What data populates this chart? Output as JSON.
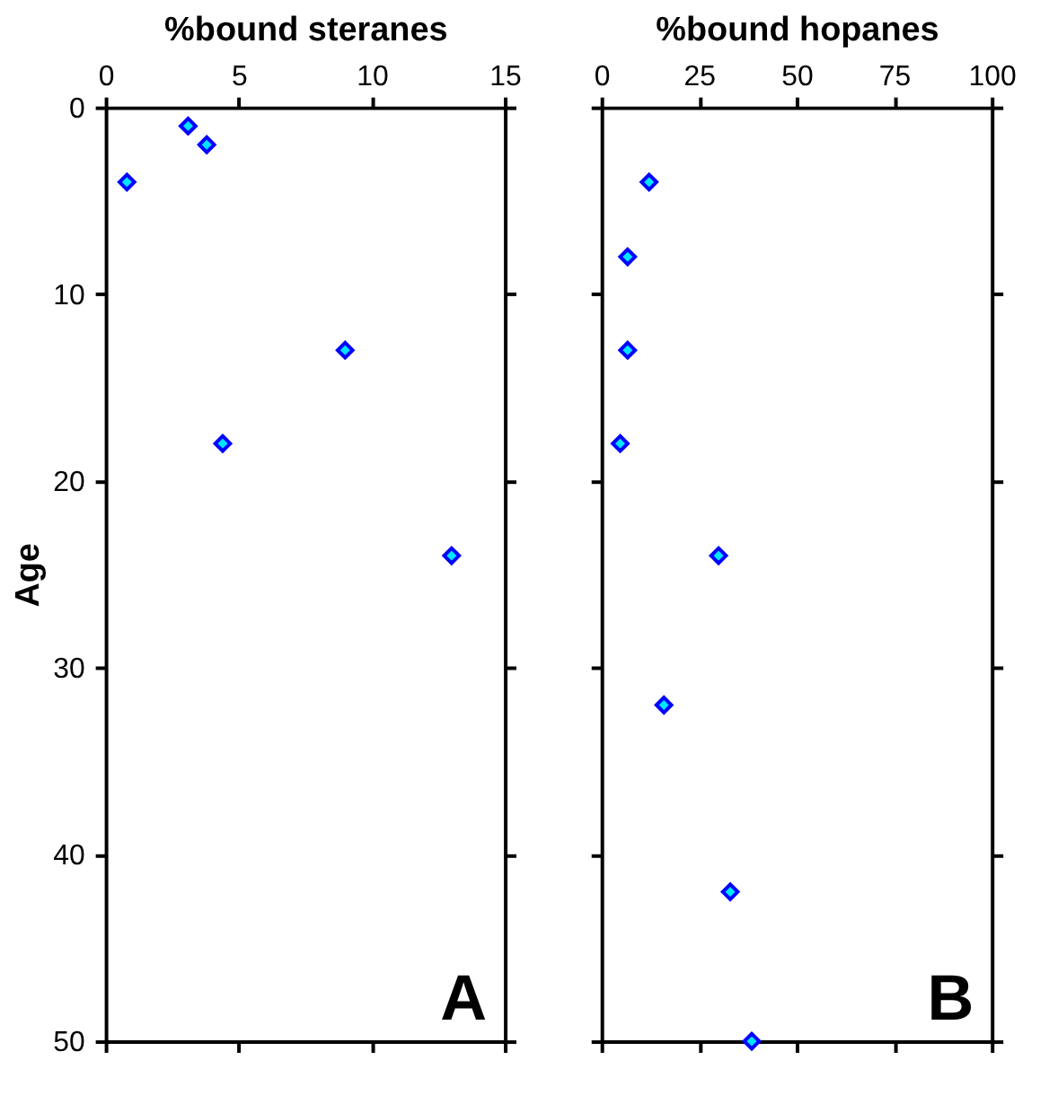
{
  "chart_data": [
    {
      "type": "scatter",
      "title": "%bound steranes",
      "ylabel": "Age",
      "marker": "diamond",
      "grid": false,
      "xlim": [
        0,
        15
      ],
      "xticks": [
        0,
        5,
        10,
        15
      ],
      "ylim": [
        50,
        0
      ],
      "yticks": [
        0,
        10,
        20,
        30,
        40,
        50
      ],
      "annotations": [
        "A"
      ],
      "series": [
        {
          "color": "#00e5ff",
          "x": [
            3.1,
            3.8,
            0.8,
            9.0,
            4.4,
            13.0
          ],
          "values": [
            1,
            2,
            4,
            13,
            18,
            24
          ]
        }
      ]
    },
    {
      "type": "scatter",
      "title": "%bound hopanes",
      "marker": "diamond",
      "grid": false,
      "tick_labels": "x",
      "xlim": [
        0,
        100
      ],
      "xticks": [
        0,
        25,
        50,
        75,
        100
      ],
      "ylim": [
        50,
        0
      ],
      "yticks": [
        0,
        10,
        20,
        30,
        40,
        50
      ],
      "annotations": [
        "B"
      ],
      "series": [
        {
          "color": "#00e5ff",
          "x": [
            12.2,
            6.7,
            6.7,
            4.8,
            30,
            16,
            33,
            38.5
          ],
          "values": [
            4,
            8,
            13,
            18,
            24,
            32,
            42,
            50
          ]
        }
      ]
    }
  ]
}
